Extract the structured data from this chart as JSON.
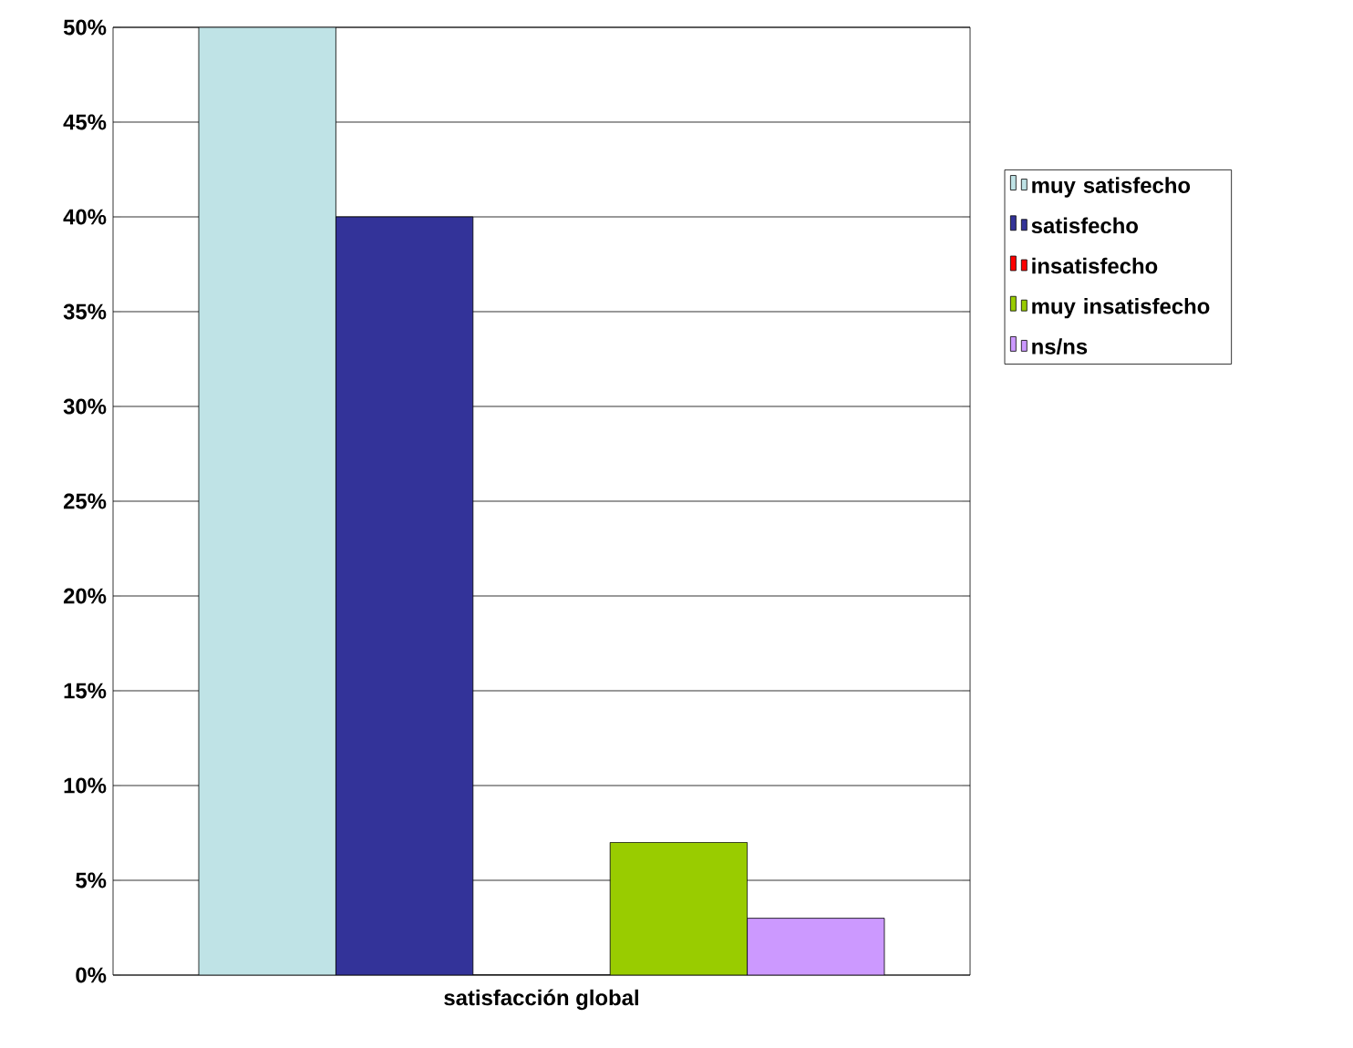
{
  "chart_data": {
    "type": "bar",
    "categories": [
      "satisfacción global"
    ],
    "series": [
      {
        "name": "muy satisfecho",
        "color": "#bfe3e6",
        "values": [
          50
        ]
      },
      {
        "name": "satisfecho",
        "color": "#333399",
        "values": [
          40
        ]
      },
      {
        "name": "insatisfecho",
        "color": "#ff0000",
        "values": [
          0
        ]
      },
      {
        "name": "muy insatisfecho",
        "color": "#99cc00",
        "values": [
          7
        ]
      },
      {
        "name": "ns/ns",
        "color": "#cc99ff",
        "values": [
          3
        ]
      }
    ],
    "ylim": [
      0,
      50
    ],
    "yticks": [
      {
        "value": 0,
        "label": "0%"
      },
      {
        "value": 5,
        "label": "5%"
      },
      {
        "value": 10,
        "label": "10%"
      },
      {
        "value": 15,
        "label": "15%"
      },
      {
        "value": 20,
        "label": "20%"
      },
      {
        "value": 25,
        "label": "25%"
      },
      {
        "value": 30,
        "label": "30%"
      },
      {
        "value": 35,
        "label": "35%"
      },
      {
        "value": 40,
        "label": "40%"
      },
      {
        "value": 45,
        "label": "45%"
      },
      {
        "value": 50,
        "label": "50%"
      }
    ],
    "grid": "y",
    "legend": "right"
  }
}
